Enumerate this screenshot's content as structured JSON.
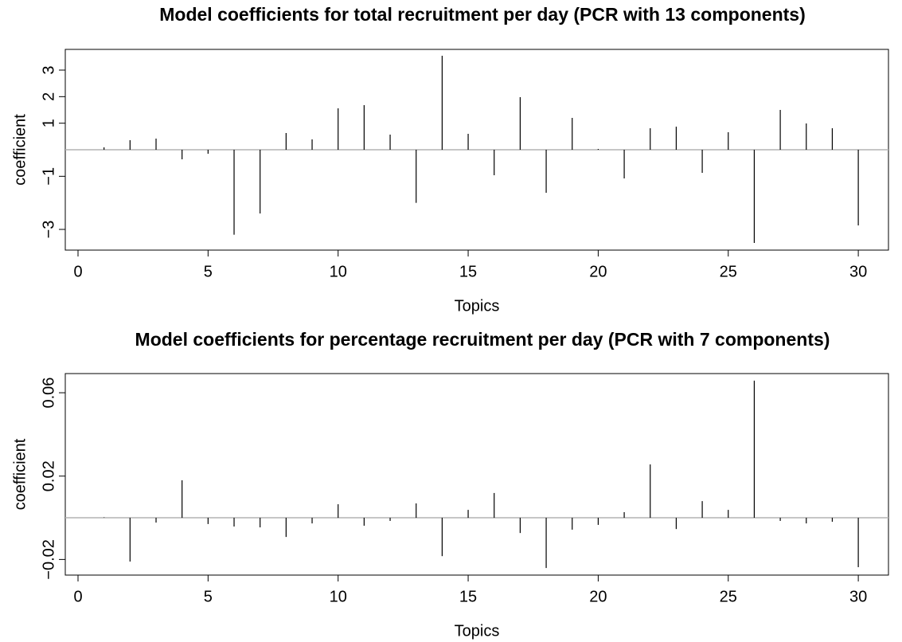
{
  "chart_data": [
    {
      "type": "bar",
      "title": "Model coefficients for total recruitment per day (PCR with 13 components)",
      "x_label": "Topics",
      "y_label": "coefficient",
      "color": "#000000",
      "zero_line_color": "#b3b3b3",
      "x": [
        1,
        2,
        3,
        4,
        5,
        6,
        7,
        8,
        9,
        10,
        11,
        12,
        13,
        14,
        15,
        16,
        17,
        18,
        19,
        20,
        21,
        22,
        23,
        24,
        25,
        26,
        27,
        28,
        29,
        30
      ],
      "values": [
        0.09,
        0.36,
        0.42,
        -0.36,
        -0.15,
        -3.2,
        -2.4,
        0.63,
        0.39,
        1.56,
        1.68,
        0.57,
        -2.0,
        3.54,
        0.6,
        -0.96,
        1.98,
        -1.62,
        1.2,
        0.03,
        -1.08,
        0.81,
        0.87,
        -0.87,
        0.66,
        -3.51,
        1.5,
        0.99,
        0.81,
        -2.85
      ],
      "xlim": [
        -0.49,
        31.16
      ],
      "xticks": [
        0,
        5,
        10,
        15,
        20,
        25,
        30
      ],
      "ylim": [
        -3.78,
        3.78
      ],
      "yticks": [
        3,
        2,
        1,
        {
          "value": -1,
          "label": "−1"
        },
        {
          "value": -3,
          "label": "−3"
        }
      ]
    },
    {
      "type": "bar",
      "title": "Model coefficients for percentage recruitment per day (PCR with 7 components)",
      "x_label": "Topics",
      "y_label": "coefficient",
      "color": "#000000",
      "zero_line_color": "#b3b3b3",
      "x": [
        1,
        2,
        3,
        4,
        5,
        6,
        7,
        8,
        9,
        10,
        11,
        12,
        13,
        14,
        15,
        16,
        17,
        18,
        19,
        20,
        21,
        22,
        23,
        24,
        25,
        26,
        27,
        28,
        29,
        30
      ],
      "values": [
        0.0002,
        -0.021,
        -0.0023,
        0.018,
        -0.003,
        -0.0042,
        -0.0046,
        -0.0092,
        -0.0027,
        0.0065,
        -0.0038,
        -0.0015,
        0.0069,
        -0.0184,
        0.0038,
        0.0119,
        -0.0073,
        -0.0241,
        -0.0057,
        -0.0034,
        0.0027,
        0.0256,
        -0.0054,
        0.008,
        0.0038,
        0.0658,
        -0.0015,
        -0.0027,
        -0.0019,
        -0.0237
      ],
      "xlim": [
        -0.49,
        31.16
      ],
      "xticks": [
        0,
        5,
        10,
        15,
        20,
        25,
        30
      ],
      "ylim": [
        -0.0275,
        0.0692
      ],
      "yticks": [
        {
          "value": 0.06,
          "label": "0.06"
        },
        {
          "value": 0.02,
          "label": "0.02"
        },
        {
          "value": -0.02,
          "label": "−0.02"
        }
      ]
    }
  ]
}
